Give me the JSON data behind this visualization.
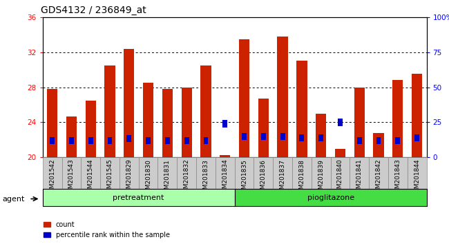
{
  "title": "GDS4132 / 236849_at",
  "samples": [
    "GSM201542",
    "GSM201543",
    "GSM201544",
    "GSM201545",
    "GSM201829",
    "GSM201830",
    "GSM201831",
    "GSM201832",
    "GSM201833",
    "GSM201834",
    "GSM201835",
    "GSM201836",
    "GSM201837",
    "GSM201838",
    "GSM201839",
    "GSM201840",
    "GSM201841",
    "GSM201842",
    "GSM201843",
    "GSM201844"
  ],
  "count_values": [
    27.8,
    24.7,
    26.5,
    30.5,
    32.4,
    28.5,
    27.8,
    28.0,
    30.5,
    20.3,
    33.5,
    26.7,
    33.8,
    31.0,
    25.0,
    21.0,
    28.0,
    22.8,
    28.8,
    29.5
  ],
  "percentile_values": [
    9.5,
    9.5,
    9.5,
    9.5,
    11.0,
    9.5,
    9.5,
    9.5,
    9.5,
    21.5,
    12.5,
    12.5,
    12.5,
    11.5,
    11.5,
    22.5,
    9.5,
    9.5,
    9.5,
    11.5
  ],
  "bar_color": "#CC2200",
  "percentile_color": "#0000CC",
  "ylim_left": [
    20,
    36
  ],
  "ylim_right": [
    0,
    100
  ],
  "yticks_left": [
    20,
    24,
    28,
    32,
    36
  ],
  "yticks_right": [
    0,
    25,
    50,
    75,
    100
  ],
  "ytick_labels_right": [
    "0",
    "25",
    "50",
    "75",
    "100%"
  ],
  "group1_label": "pretreatment",
  "group2_label": "pioglitazone",
  "group1_count": 10,
  "group2_count": 10,
  "agent_label": "agent",
  "legend_count_label": "count",
  "legend_percentile_label": "percentile rank within the sample",
  "bar_width": 0.55,
  "plot_bg": "#FFFFFF",
  "tick_area_bg": "#CCCCCC",
  "group1_bg": "#AAFFAA",
  "group2_bg": "#44DD44",
  "title_fontsize": 10,
  "tick_fontsize": 6.5,
  "label_fontsize": 8
}
